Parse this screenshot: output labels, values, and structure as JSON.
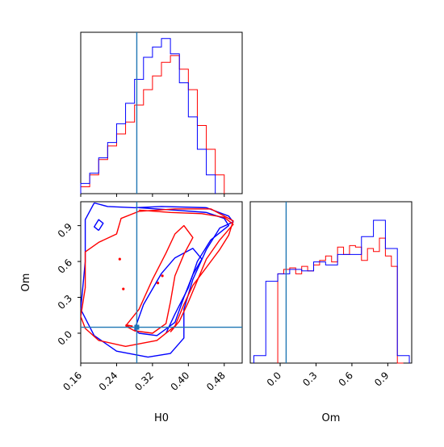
{
  "chart_data": [
    {
      "panel": "H0 marginal",
      "type": "histogram",
      "xlabel": "",
      "ylabel": "",
      "xlim": [
        0.16,
        0.52
      ],
      "x_ticks": [
        0.16,
        0.24,
        0.32,
        0.4,
        0.48
      ],
      "y_ticks_shown": false,
      "truth_line": 0.285,
      "series": [
        {
          "color": "#ff0000",
          "bin_edges": [
            0.16,
            0.18,
            0.2,
            0.22,
            0.24,
            0.26,
            0.28,
            0.3,
            0.32,
            0.34,
            0.36,
            0.38,
            0.4,
            0.42,
            0.44,
            0.46,
            0.48
          ],
          "counts": [
            0.4,
            1.1,
            2.0,
            2.8,
            3.5,
            4.2,
            5.2,
            6.1,
            6.9,
            7.7,
            8.1,
            7.3,
            6.1,
            4.0,
            2.6,
            1.1
          ]
        },
        {
          "color": "#0000ff",
          "bin_edges": [
            0.16,
            0.18,
            0.2,
            0.22,
            0.24,
            0.26,
            0.28,
            0.3,
            0.32,
            0.34,
            0.36,
            0.38,
            0.4,
            0.42,
            0.44,
            0.46
          ],
          "counts": [
            0.6,
            1.2,
            2.1,
            3.0,
            4.1,
            5.3,
            6.7,
            8.0,
            8.6,
            9.1,
            8.2,
            6.5,
            4.5,
            2.6,
            1.1
          ]
        }
      ]
    },
    {
      "panel": "H0 vs Om 2D",
      "type": "contour",
      "xlabel": "H0",
      "ylabel": "Om",
      "xlim": [
        0.16,
        0.52
      ],
      "ylim": [
        -0.25,
        1.1
      ],
      "x_ticks": [
        "0.16",
        "0.24",
        "0.32",
        "0.40",
        "0.48"
      ],
      "y_ticks": [
        "0.0",
        "0.3",
        "0.6",
        "0.9"
      ],
      "truth_point": [
        0.285,
        0.05
      ],
      "red_contours": [
        [
          [
            0.17,
            0.04
          ],
          [
            0.16,
            0.14
          ],
          [
            0.17,
            0.38
          ],
          [
            0.17,
            0.68
          ],
          [
            0.2,
            0.76
          ],
          [
            0.24,
            0.83
          ],
          [
            0.25,
            0.96
          ],
          [
            0.29,
            1.02
          ],
          [
            0.37,
            1.04
          ],
          [
            0.45,
            1.04
          ],
          [
            0.5,
            0.94
          ],
          [
            0.49,
            0.82
          ],
          [
            0.47,
            0.7
          ],
          [
            0.44,
            0.55
          ],
          [
            0.41,
            0.4
          ],
          [
            0.39,
            0.24
          ],
          [
            0.37,
            0.06
          ],
          [
            0.33,
            -0.06
          ],
          [
            0.26,
            -0.11
          ],
          [
            0.2,
            -0.06
          ],
          [
            0.17,
            0.04
          ]
        ],
        [
          [
            0.26,
            0.06
          ],
          [
            0.29,
            0.2
          ],
          [
            0.32,
            0.45
          ],
          [
            0.35,
            0.67
          ],
          [
            0.37,
            0.83
          ],
          [
            0.39,
            0.9
          ],
          [
            0.41,
            0.8
          ],
          [
            0.39,
            0.66
          ],
          [
            0.37,
            0.48
          ],
          [
            0.36,
            0.26
          ],
          [
            0.35,
            0.08
          ],
          [
            0.32,
            0.0
          ],
          [
            0.28,
            0.02
          ],
          [
            0.26,
            0.06
          ]
        ],
        [
          [
            0.29,
            1.03
          ],
          [
            0.36,
            1.01
          ],
          [
            0.43,
            1.0
          ],
          [
            0.48,
            0.97
          ],
          [
            0.5,
            0.91
          ],
          [
            0.47,
            0.78
          ],
          [
            0.44,
            0.62
          ],
          [
            0.42,
            0.44
          ],
          [
            0.4,
            0.26
          ],
          [
            0.38,
            0.1
          ],
          [
            0.36,
            0.01
          ]
        ],
        [
          [
            0.26,
            0.07
          ],
          [
            0.275,
            0.06
          ],
          [
            0.27,
            0.05
          ],
          [
            0.26,
            0.07
          ]
        ]
      ],
      "red_points": [
        [
          0.247,
          0.62
        ],
        [
          0.255,
          0.37
        ],
        [
          0.332,
          0.42
        ],
        [
          0.342,
          0.48
        ]
      ],
      "blue_contours": [
        [
          [
            0.19,
            1.09
          ],
          [
            0.17,
            0.95
          ],
          [
            0.17,
            0.6
          ],
          [
            0.16,
            0.2
          ],
          [
            0.19,
            -0.02
          ],
          [
            0.24,
            -0.15
          ],
          [
            0.31,
            -0.2
          ],
          [
            0.36,
            -0.17
          ],
          [
            0.39,
            -0.04
          ],
          [
            0.39,
            0.2
          ],
          [
            0.41,
            0.45
          ],
          [
            0.44,
            0.7
          ],
          [
            0.47,
            0.88
          ],
          [
            0.5,
            0.93
          ],
          [
            0.49,
            0.98
          ],
          [
            0.44,
            1.05
          ],
          [
            0.34,
            1.06
          ],
          [
            0.28,
            1.05
          ],
          [
            0.22,
            1.06
          ],
          [
            0.19,
            1.09
          ]
        ],
        [
          [
            0.28,
            0.03
          ],
          [
            0.3,
            0.24
          ],
          [
            0.34,
            0.5
          ],
          [
            0.37,
            0.63
          ],
          [
            0.41,
            0.71
          ],
          [
            0.43,
            0.62
          ],
          [
            0.41,
            0.49
          ],
          [
            0.39,
            0.3
          ],
          [
            0.37,
            0.09
          ],
          [
            0.33,
            -0.02
          ],
          [
            0.29,
            0.0
          ],
          [
            0.28,
            0.03
          ]
        ],
        [
          [
            0.29,
            1.05
          ],
          [
            0.37,
            1.03
          ],
          [
            0.44,
            1.01
          ],
          [
            0.48,
            0.96
          ],
          [
            0.49,
            0.9
          ],
          [
            0.45,
            0.78
          ],
          [
            0.42,
            0.6
          ],
          [
            0.4,
            0.38
          ],
          [
            0.37,
            0.16
          ],
          [
            0.35,
            0.0
          ]
        ],
        [
          [
            0.2,
            0.86
          ],
          [
            0.21,
            0.92
          ],
          [
            0.2,
            0.95
          ],
          [
            0.19,
            0.89
          ],
          [
            0.2,
            0.86
          ]
        ]
      ]
    },
    {
      "panel": "Om marginal",
      "type": "histogram",
      "xlabel": "Om",
      "ylabel": "",
      "xlim": [
        -0.25,
        1.1
      ],
      "x_ticks": [
        "0.0",
        "0.3",
        "0.6",
        "0.9"
      ],
      "y_ticks_shown": false,
      "truth_line": 0.05,
      "series": [
        {
          "color": "#ff0000",
          "bin_edges": [
            -0.02,
            0.03,
            0.08,
            0.13,
            0.18,
            0.23,
            0.28,
            0.33,
            0.38,
            0.43,
            0.48,
            0.53,
            0.58,
            0.63,
            0.68,
            0.73,
            0.78,
            0.83,
            0.88,
            0.93,
            0.98,
            1.03
          ],
          "counts": [
            6.0,
            6.3,
            6.4,
            6.0,
            6.5,
            6.2,
            6.6,
            6.9,
            7.2,
            6.8,
            7.8,
            7.3,
            7.9,
            7.8,
            6.9,
            7.7,
            7.5,
            8.4,
            7.2,
            6.5,
            0.0
          ]
        },
        {
          "color": "#0000ff",
          "bin_edges": [
            -0.22,
            -0.12,
            -0.02,
            0.08,
            0.18,
            0.28,
            0.38,
            0.48,
            0.58,
            0.68,
            0.78,
            0.88,
            0.98,
            1.08
          ],
          "counts": [
            0.5,
            5.5,
            6.0,
            6.3,
            6.2,
            6.8,
            6.6,
            7.3,
            7.3,
            8.5,
            9.6,
            7.7,
            0.5
          ]
        }
      ]
    }
  ]
}
